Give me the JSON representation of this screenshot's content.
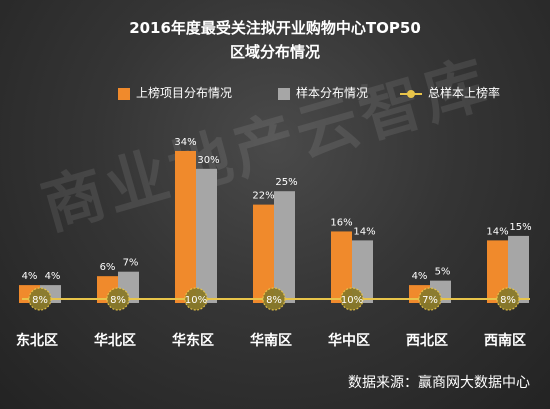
{
  "header": {
    "title_line1": "2016年度最受关注拟开业购物中心TOP50",
    "title_line2": "区域分布情况"
  },
  "watermark_text": "商业地产云智库",
  "footer": {
    "source": "数据来源：赢商网大数据中心"
  },
  "colors": {
    "orange": "#f08a2c",
    "gray": "#a6a6a6",
    "line": "#e8c44a",
    "marker_fill": "#8a7a2a"
  },
  "chart_data": {
    "type": "bar",
    "title": "2016年度最受关注拟开业购物中心TOP50 区域分布情况",
    "categories": [
      "东北区",
      "华北区",
      "华东区",
      "华南区",
      "华中区",
      "西北区",
      "西南区"
    ],
    "series": [
      {
        "name": "上榜项目分布情况",
        "type": "bar",
        "values": [
          4,
          6,
          34,
          22,
          16,
          4,
          14
        ],
        "labels": [
          "4%",
          "6%",
          "34%",
          "22%",
          "16%",
          "4%",
          "14%"
        ]
      },
      {
        "name": "样本分布情况",
        "type": "bar",
        "values": [
          4,
          7,
          30,
          25,
          14,
          5,
          15
        ],
        "labels": [
          "4%",
          "7%",
          "30%",
          "25%",
          "14%",
          "5%",
          "15%"
        ]
      },
      {
        "name": "总样本上榜率",
        "type": "line",
        "values": [
          8,
          8,
          10,
          8,
          10,
          7,
          8
        ],
        "labels": [
          "8%",
          "8%",
          "10%",
          "8%",
          "10%",
          "7%",
          "8%"
        ]
      }
    ],
    "legend_position": "top",
    "ylim": [
      0,
      36
    ],
    "grid": false
  }
}
